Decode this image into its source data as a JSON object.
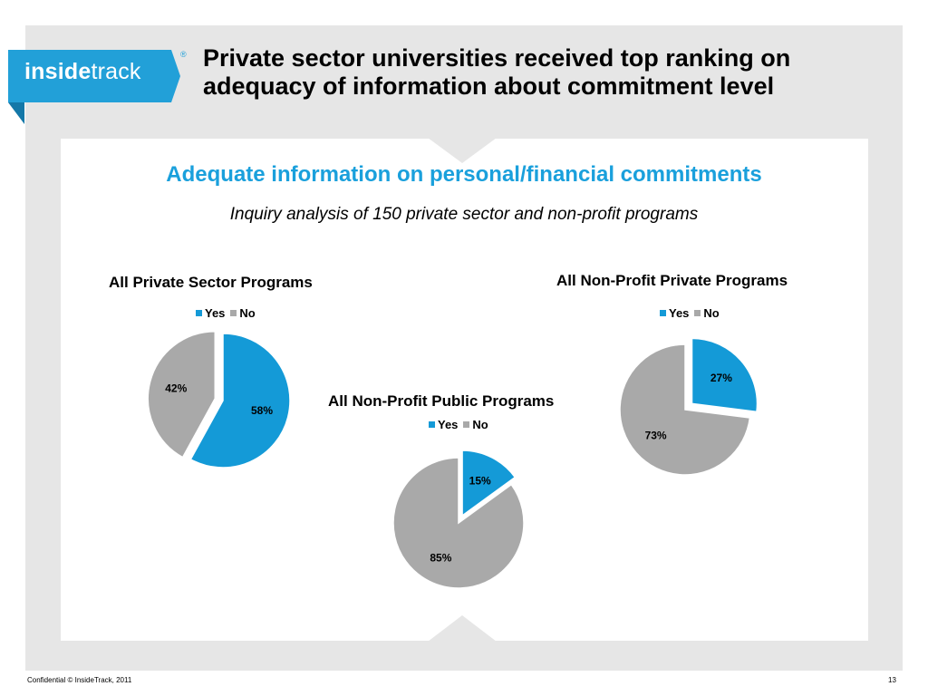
{
  "header": {
    "logo_word1": "inside",
    "logo_word2": "track",
    "logo_reg": "®",
    "title": "Private sector universities received top ranking on adequacy of information about commitment level"
  },
  "section": {
    "title": "Adequate information on personal/financial commitments",
    "caption": "Inquiry analysis of 150 private sector and non-profit programs"
  },
  "footer": {
    "confidential": "Confidential   © InsideTrack, 2011",
    "page_number": "13"
  },
  "colors": {
    "yes": "#149ad7",
    "no": "#a9a9a9",
    "brand_blue": "#1aa0dc",
    "background": "#e6e6e6"
  },
  "chart_data": [
    {
      "type": "pie",
      "title": "All Private Sector Programs",
      "legend": [
        "Yes",
        "No"
      ],
      "legend_position": "top",
      "slices": [
        {
          "label": "Yes",
          "value": 58,
          "display": "58%",
          "exploded": false
        },
        {
          "label": "No",
          "value": 42,
          "display": "42%",
          "exploded": true
        }
      ]
    },
    {
      "type": "pie",
      "title": "All Non-Profit Public Programs",
      "legend": [
        "Yes",
        "No"
      ],
      "legend_position": "top",
      "slices": [
        {
          "label": "Yes",
          "value": 15,
          "display": "15%",
          "exploded": true
        },
        {
          "label": "No",
          "value": 85,
          "display": "85%",
          "exploded": false
        }
      ]
    },
    {
      "type": "pie",
      "title": "All Non-Profit Private Programs",
      "legend": [
        "Yes",
        "No"
      ],
      "legend_position": "top",
      "slices": [
        {
          "label": "Yes",
          "value": 27,
          "display": "27%",
          "exploded": true
        },
        {
          "label": "No",
          "value": 73,
          "display": "73%",
          "exploded": false
        }
      ]
    }
  ]
}
